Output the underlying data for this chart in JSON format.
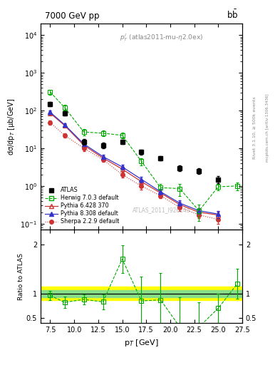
{
  "title_left": "7000 GeV pp",
  "title_right": "b$\\bar{b}$",
  "annotation": "$p_T^l$ (atlas2011-mu-η2.0ex)",
  "watermark": "ATLAS_2011_I926145",
  "ylabel_main": "dσ/dp$_T$ [μb/GeV]",
  "ylabel_ratio": "Ratio to ATLAS",
  "xlabel": "p$_T$ [GeV]",
  "ylim_main": [
    0.07,
    20000.0
  ],
  "ylim_ratio": [
    0.4,
    2.3
  ],
  "xlim": [
    6.5,
    27.5
  ],
  "atlas_x": [
    7.5,
    9.0,
    11.0,
    13.0,
    15.0,
    17.0,
    19.0,
    21.0,
    23.0,
    25.0
  ],
  "atlas_y": [
    150,
    85,
    15,
    12,
    15,
    8,
    5.5,
    3.0,
    2.5,
    1.5
  ],
  "atlas_yerr_lo": [
    20,
    10,
    2.5,
    2,
    2,
    1.2,
    0.8,
    0.5,
    0.4,
    0.3
  ],
  "atlas_yerr_hi": [
    20,
    10,
    2.5,
    2,
    2,
    1.2,
    0.8,
    0.5,
    0.4,
    0.3
  ],
  "herwig_x": [
    7.5,
    9.0,
    11.0,
    13.0,
    15.0,
    17.0,
    19.0,
    21.0,
    23.0,
    25.0,
    27.0
  ],
  "herwig_y": [
    310,
    120,
    27,
    25,
    22,
    4.5,
    0.9,
    0.85,
    0.22,
    0.95,
    1.0
  ],
  "herwig_yerr": [
    50,
    20,
    5,
    4,
    4,
    1.0,
    0.25,
    0.3,
    0.1,
    0.2,
    0.25
  ],
  "pythia6_x": [
    7.5,
    9.0,
    11.0,
    13.0,
    15.0,
    17.0,
    19.0,
    21.0,
    23.0,
    25.0
  ],
  "pythia6_y": [
    85,
    40,
    12,
    5.5,
    2.8,
    1.3,
    0.65,
    0.32,
    0.2,
    0.17
  ],
  "pythia6_yerr": [
    8,
    4,
    1.5,
    0.7,
    0.4,
    0.2,
    0.1,
    0.06,
    0.04,
    0.04
  ],
  "pythia8_x": [
    7.5,
    9.0,
    11.0,
    13.0,
    15.0,
    17.0,
    19.0,
    21.0,
    23.0,
    25.0
  ],
  "pythia8_y": [
    90,
    42,
    13,
    6.0,
    3.2,
    1.5,
    0.7,
    0.35,
    0.22,
    0.18
  ],
  "pythia8_yerr": [
    9,
    4.5,
    1.8,
    0.8,
    0.5,
    0.25,
    0.12,
    0.07,
    0.04,
    0.04
  ],
  "sherpa_x": [
    7.5,
    9.0,
    11.0,
    13.0,
    15.0,
    17.0,
    19.0,
    21.0,
    23.0,
    25.0
  ],
  "sherpa_y": [
    48,
    22,
    10,
    5.0,
    2.0,
    1.0,
    0.55,
    0.27,
    0.17,
    0.13
  ],
  "sherpa_yerr": [
    6,
    3,
    1.5,
    0.6,
    0.3,
    0.2,
    0.08,
    0.05,
    0.03,
    0.03
  ],
  "ratio_herwig_x": [
    7.5,
    9.0,
    11.0,
    13.0,
    15.0,
    17.0,
    19.0,
    21.0,
    23.0,
    25.0,
    27.0
  ],
  "ratio_herwig_y": [
    0.96,
    0.82,
    0.88,
    0.83,
    1.7,
    0.85,
    0.87,
    0.32,
    0.32,
    0.7,
    1.2
  ],
  "ratio_herwig_yerr": [
    0.1,
    0.12,
    0.1,
    0.15,
    0.28,
    0.5,
    0.55,
    0.6,
    0.5,
    0.3,
    0.3
  ],
  "green_band_lo": 0.93,
  "green_band_hi": 1.07,
  "yellow_band_lo": 0.86,
  "yellow_band_hi": 1.14,
  "color_atlas": "#000000",
  "color_herwig": "#00aa00",
  "color_pythia6": "#cc3333",
  "color_pythia8": "#3333cc",
  "color_sherpa": "#cc3333",
  "legend_entries": [
    "ATLAS",
    "Herwig 7.0.3 default",
    "Pythia 6.428 370",
    "Pythia 8.308 default",
    "Sherpa 2.2.9 default"
  ],
  "figsize": [
    3.93,
    5.12
  ],
  "dpi": 100
}
